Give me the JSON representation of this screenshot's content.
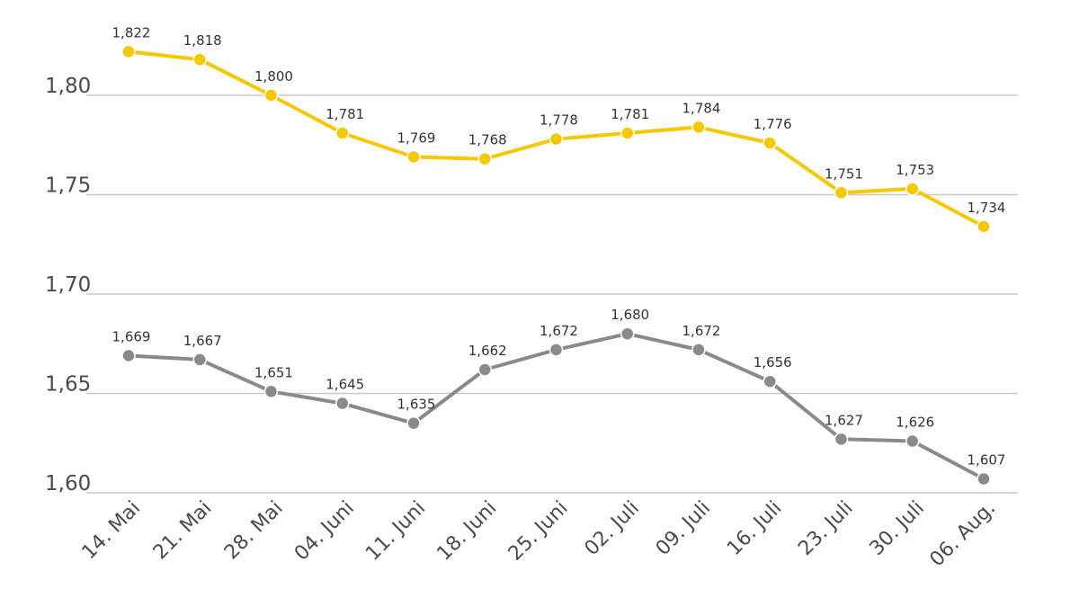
{
  "chart_data": {
    "type": "line",
    "title": "",
    "xlabel": "",
    "ylabel": "",
    "categories": [
      "14. Mai",
      "21. Mai",
      "28. Mai",
      "04. Juni",
      "11. Juni",
      "18. Juni",
      "25. Juni",
      "02. Juli",
      "09. Juli",
      "16. Juli",
      "23. Juli",
      "30. Juli",
      "06. Aug."
    ],
    "ylim": [
      1.6,
      1.8
    ],
    "yticks": [
      1.6,
      1.65,
      1.7,
      1.75,
      1.8
    ],
    "ytick_labels": [
      "1,60",
      "1,65",
      "1,70",
      "1,75",
      "1,80"
    ],
    "grid": true,
    "legend": "none",
    "series": [
      {
        "name": "yellow-series",
        "color": "#f5c800",
        "values": [
          1.822,
          1.818,
          1.8,
          1.781,
          1.769,
          1.768,
          1.778,
          1.781,
          1.784,
          1.776,
          1.751,
          1.753,
          1.734
        ],
        "labels": [
          "1,822",
          "1,818",
          "1,800",
          "1,781",
          "1,769",
          "1,768",
          "1,778",
          "1,781",
          "1,784",
          "1,776",
          "1,751",
          "1,753",
          "1,734"
        ]
      },
      {
        "name": "grey-series",
        "color": "#8a8a8a",
        "values": [
          1.669,
          1.667,
          1.651,
          1.645,
          1.635,
          1.662,
          1.672,
          1.68,
          1.672,
          1.656,
          1.627,
          1.626,
          1.607
        ],
        "labels": [
          "1,669",
          "1,667",
          "1,651",
          "1,645",
          "1,635",
          "1,662",
          "1,672",
          "1,680",
          "1,672",
          "1,656",
          "1,627",
          "1,626",
          "1,607"
        ]
      }
    ]
  }
}
